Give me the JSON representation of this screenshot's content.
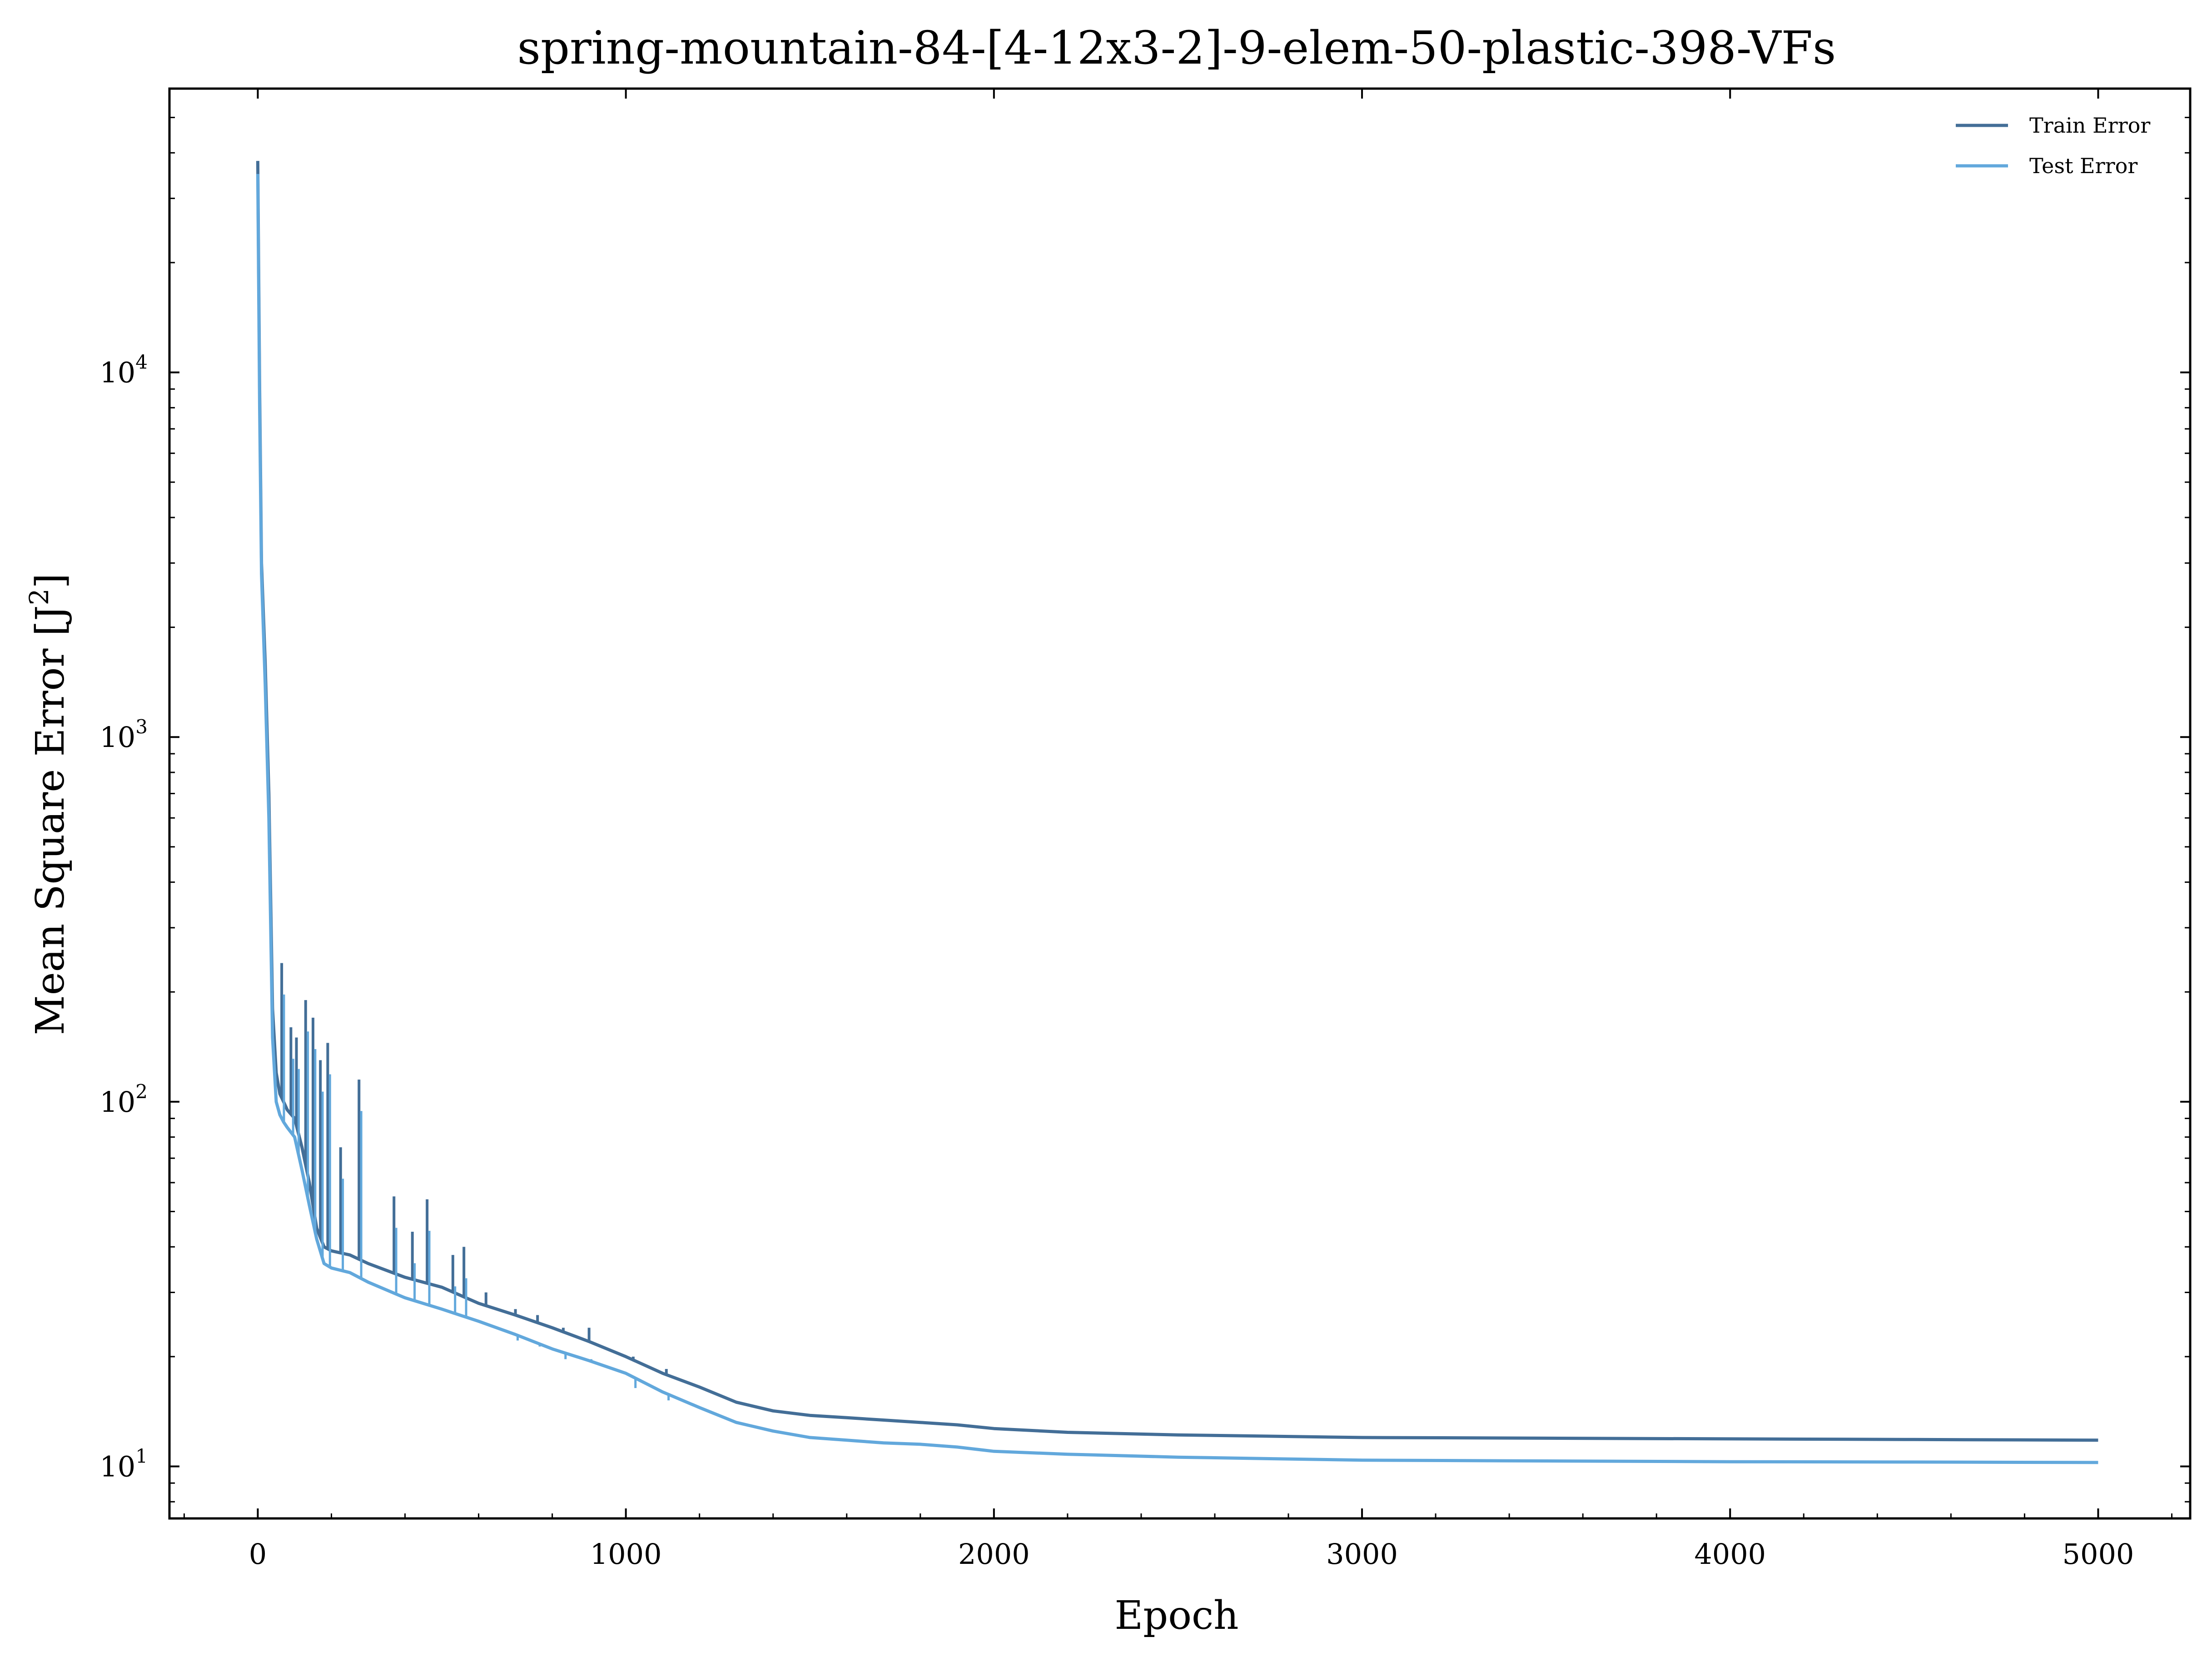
{
  "chart_data": {
    "type": "line",
    "title": "spring-mountain-84-[4-12x3-2]-9-elem-50-plastic-398-VFs",
    "xlabel": "Epoch",
    "ylabel": "Mean Square Error [J",
    "ylabel_sup": "2",
    "ylabel_tail": "]",
    "yscale": "log",
    "xlim": [
      -240,
      5250
    ],
    "ylim": [
      7.2,
      60000
    ],
    "x_ticks": [
      0,
      1000,
      2000,
      3000,
      4000,
      5000
    ],
    "x_tick_labels": [
      "0",
      "1000",
      "2000",
      "3000",
      "4000",
      "5000"
    ],
    "y_ticks": [
      10,
      100,
      1000,
      10000
    ],
    "y_tick_base": "10",
    "y_tick_exponents": [
      "1",
      "2",
      "3",
      "4"
    ],
    "grid": false,
    "legend_position": "top-right",
    "series": [
      {
        "name": "Train Error",
        "color": "#436e97",
        "x": [
          0,
          5,
          10,
          20,
          30,
          40,
          50,
          60,
          70,
          80,
          100,
          120,
          140,
          160,
          180,
          200,
          250,
          300,
          400,
          500,
          600,
          700,
          800,
          900,
          1000,
          1100,
          1200,
          1300,
          1400,
          1500,
          1600,
          1700,
          1800,
          1900,
          2000,
          2200,
          2500,
          3000,
          3500,
          4000,
          4500,
          5000
        ],
        "y": [
          38000,
          9000,
          3000,
          1600,
          700,
          180,
          120,
          105,
          100,
          95,
          90,
          75,
          60,
          45,
          40,
          39,
          38,
          36,
          33,
          31,
          28,
          26,
          24,
          22,
          20,
          18,
          16.5,
          15,
          14.2,
          13.8,
          13.6,
          13.4,
          13.2,
          13.0,
          12.7,
          12.4,
          12.2,
          12.0,
          11.95,
          11.9,
          11.85,
          11.8
        ]
      },
      {
        "name": "Test Error",
        "color": "#62a8dc",
        "x": [
          0,
          5,
          10,
          20,
          30,
          40,
          50,
          60,
          70,
          80,
          100,
          120,
          140,
          160,
          180,
          200,
          250,
          300,
          400,
          500,
          600,
          700,
          800,
          900,
          1000,
          1100,
          1200,
          1300,
          1400,
          1500,
          1600,
          1700,
          1800,
          1900,
          2000,
          2200,
          2500,
          3000,
          3500,
          4000,
          4500,
          5000
        ],
        "y": [
          35000,
          8000,
          2800,
          1400,
          600,
          150,
          100,
          92,
          88,
          85,
          80,
          65,
          52,
          42,
          36,
          35,
          34,
          32,
          29,
          27,
          25,
          23,
          21,
          19.5,
          18,
          16,
          14.5,
          13.2,
          12.5,
          12.0,
          11.8,
          11.6,
          11.5,
          11.3,
          11.0,
          10.8,
          10.6,
          10.4,
          10.35,
          10.3,
          10.28,
          10.25
        ]
      }
    ],
    "spikes": [
      {
        "x": 65,
        "y": 240
      },
      {
        "x": 90,
        "y": 160
      },
      {
        "x": 105,
        "y": 150
      },
      {
        "x": 130,
        "y": 190
      },
      {
        "x": 150,
        "y": 170
      },
      {
        "x": 170,
        "y": 130
      },
      {
        "x": 190,
        "y": 145
      },
      {
        "x": 225,
        "y": 75
      },
      {
        "x": 275,
        "y": 115
      },
      {
        "x": 370,
        "y": 55
      },
      {
        "x": 420,
        "y": 44
      },
      {
        "x": 460,
        "y": 54
      },
      {
        "x": 530,
        "y": 38
      },
      {
        "x": 560,
        "y": 40
      },
      {
        "x": 620,
        "y": 30
      },
      {
        "x": 700,
        "y": 27
      },
      {
        "x": 760,
        "y": 26
      },
      {
        "x": 830,
        "y": 24
      },
      {
        "x": 900,
        "y": 24
      },
      {
        "x": 1020,
        "y": 20
      },
      {
        "x": 1110,
        "y": 18.5
      }
    ]
  }
}
